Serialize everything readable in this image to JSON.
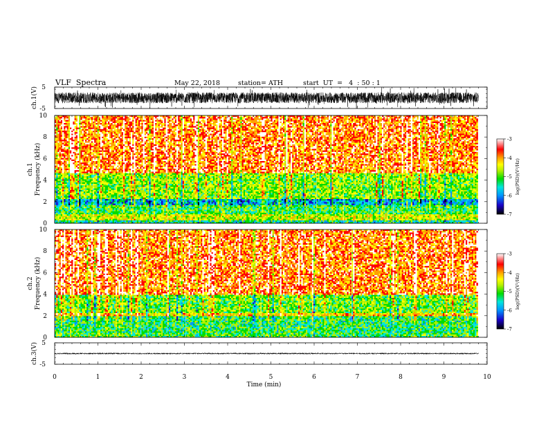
{
  "header": {
    "title": "VLF  Spectra",
    "date": "May 22, 2018",
    "station": "station= ATH",
    "start": "start  UT  =   4  : 50 : 1"
  },
  "chart_data": {
    "type": "heatmap",
    "x_axis": {
      "label": "Time  (min)",
      "range": [
        0,
        10
      ],
      "ticks": [
        "0",
        "1",
        "2",
        "3",
        "4",
        "5",
        "6",
        "7",
        "8",
        "9",
        "10"
      ],
      "data_end": 9.8
    },
    "panels": [
      {
        "id": "ch1_waveform",
        "type": "line",
        "ylabel": "ch.1(V)",
        "ylim": [
          -5,
          5
        ],
        "yticks": [
          "5",
          "-5"
        ],
        "description_values": {
          "mean": 0,
          "amplitude_typical": 2.5,
          "amplitude_max": 5
        }
      },
      {
        "id": "ch1_spectrogram",
        "type": "heatmap",
        "ylabel_channel": "ch.1",
        "ylabel": "Frequency  (kHz)",
        "ylim": [
          0,
          10
        ],
        "yticks": [
          "0",
          "2",
          "4",
          "6",
          "8",
          "10"
        ],
        "levels_by_frequency_khz": [
          {
            "from": 0.0,
            "to": 0.3,
            "log_psd": -5.5
          },
          {
            "from": 0.3,
            "to": 0.9,
            "log_psd": -4.6
          },
          {
            "from": 0.9,
            "to": 1.7,
            "log_psd": -5.2
          },
          {
            "from": 1.7,
            "to": 2.3,
            "log_psd": -5.9
          },
          {
            "from": 2.3,
            "to": 4.7,
            "log_psd": -4.9
          },
          {
            "from": 4.7,
            "to": 10.0,
            "log_psd": -3.7
          }
        ],
        "colorbar": {
          "label": "log(PSD)(V²/Hz)",
          "range": [
            -7,
            -3
          ],
          "ticks": [
            "-3",
            "-4",
            "-5",
            "-6",
            "-7"
          ]
        }
      },
      {
        "id": "ch2_spectrogram",
        "type": "heatmap",
        "ylabel_channel": "ch.2",
        "ylabel": "Frequency  (kHz)",
        "ylim": [
          0,
          10
        ],
        "yticks": [
          "0",
          "2",
          "4",
          "6",
          "8",
          "10"
        ],
        "levels_by_frequency_khz": [
          {
            "from": 0.0,
            "to": 0.4,
            "log_psd": -5.2
          },
          {
            "from": 0.4,
            "to": 2.0,
            "log_psd": -5.3
          },
          {
            "from": 2.0,
            "to": 2.3,
            "log_psd": -4.2
          },
          {
            "from": 2.3,
            "to": 4.0,
            "log_psd": -5.0
          },
          {
            "from": 4.0,
            "to": 10.0,
            "log_psd": -3.7
          }
        ],
        "colorbar": {
          "label": "log(PSD)(V²/Hz)",
          "range": [
            -7,
            -3
          ],
          "ticks": [
            "-3",
            "-4",
            "-5",
            "-6",
            "-7"
          ]
        }
      },
      {
        "id": "ch3_waveform",
        "type": "line",
        "ylabel": "ch.3(V)",
        "ylim": [
          -5,
          5
        ],
        "yticks": [
          "5",
          "-5"
        ],
        "description_values": {
          "mean": 0,
          "amplitude_typical": 0.3
        }
      }
    ]
  },
  "colors": {
    "colormap": [
      "#000000",
      "#1a00c8",
      "#0096ff",
      "#00e6dc",
      "#00dc00",
      "#b4f000",
      "#ffff00",
      "#ffa000",
      "#ff0000",
      "#ffffff"
    ],
    "axis": "#000000",
    "waveform": "#000000"
  }
}
